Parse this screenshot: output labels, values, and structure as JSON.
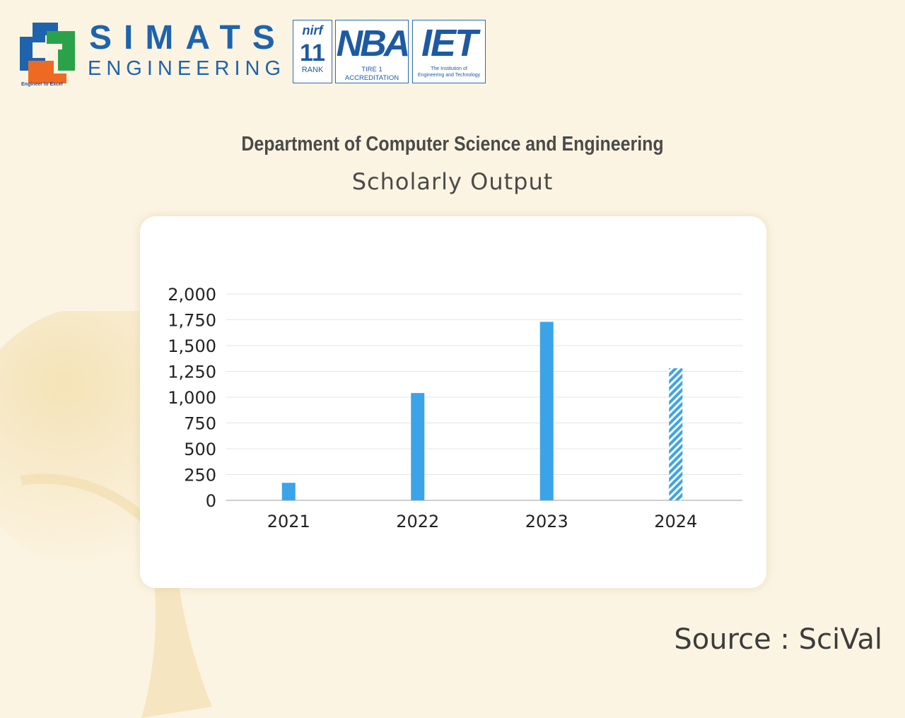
{
  "header": {
    "brand_name": "SIMATS",
    "brand_sub": "ENGINEERING",
    "tagline": "Engineer to Excel",
    "badges": {
      "nirf_label": "nirf",
      "nirf_number": "11",
      "nirf_rank": "RANK",
      "nba_logo": "NBA",
      "nba_sub": "TIRE 1 ACCREDITATION",
      "iet_logo": "IET",
      "iet_sub_line1": "The Institution of",
      "iet_sub_line2": "Engineering and Technology"
    }
  },
  "department_title": "Department of Computer Science and Engineering",
  "chart_title": "Scholarly Output",
  "source": "Source : SciVal",
  "colors": {
    "background": "#fcf4e2",
    "bar": "#3ba4e8",
    "grid": "#e4e4e4",
    "brand_blue": "#1e63ad"
  },
  "chart_data": {
    "type": "bar",
    "title": "Scholarly Output",
    "categories": [
      "2021",
      "2022",
      "2023",
      "2024"
    ],
    "values": [
      170,
      1040,
      1730,
      1280
    ],
    "bar_style": [
      "solid",
      "solid",
      "solid",
      "hatched"
    ],
    "ylim": [
      0,
      2000
    ],
    "yticks": [
      0,
      250,
      500,
      750,
      1000,
      1250,
      1500,
      1750,
      2000
    ],
    "ytick_labels": [
      "0",
      "250",
      "500",
      "750",
      "1,000",
      "1,250",
      "1,500",
      "1,750",
      "2,000"
    ],
    "xlabel": "",
    "ylabel": "",
    "grid": true
  }
}
